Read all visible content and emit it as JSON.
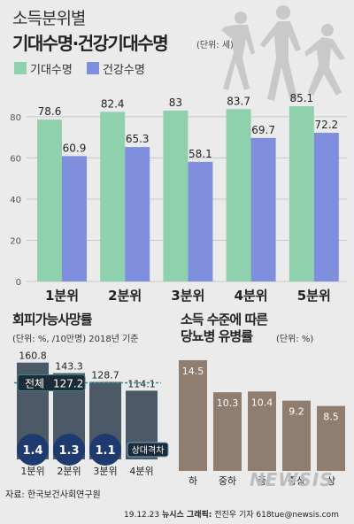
{
  "header": {
    "title_line1": "소득분위별",
    "title_line2": "기대수명·건강기대수명",
    "unit": "(단위: 세)"
  },
  "colors": {
    "green": "#8fd1ac",
    "blue": "#7f8fdd",
    "gray_bar": "#4c5966",
    "brown_bar": "#8f7d70",
    "navy_circle": "#1f3a6e",
    "accent_teal": "#2e8a8f"
  },
  "chart_data": [
    {
      "type": "bar",
      "title": "기대수명·건강기대수명",
      "categories": [
        "1분위",
        "2분위",
        "3분위",
        "4분위",
        "5분위"
      ],
      "series": [
        {
          "name": "기대수명",
          "values": [
            78.6,
            82.4,
            83,
            83.7,
            85.1
          ],
          "labels": [
            "78.6",
            "82.4",
            "83",
            "83.7",
            "85.1"
          ]
        },
        {
          "name": "건강수명",
          "values": [
            60.9,
            65.3,
            58.1,
            69.7,
            72.2
          ],
          "labels": [
            "60.9",
            "65.3",
            "58.1",
            "69.7",
            "72.2"
          ]
        }
      ],
      "yticks": [
        0,
        20,
        40,
        60,
        80
      ],
      "ylim": [
        0,
        95
      ],
      "grid": true,
      "legend": "top-left"
    },
    {
      "type": "bar",
      "title": "회피가능사망률",
      "subtitle": "(단위: %, /10만명) 2018년 기준",
      "categories": [
        "1분위",
        "2분위",
        "3분위",
        "4분위"
      ],
      "values": [
        160.8,
        143.3,
        128.7,
        114.1
      ],
      "value_labels": [
        "160.8",
        "143.3",
        "128.7",
        "114.1"
      ],
      "ratio_values": [
        "1.4",
        "1.3",
        "1.1"
      ],
      "ratio_label": "상대격차",
      "reference_line": {
        "label": "전체",
        "value": 127.2,
        "value_label": "127.2"
      },
      "ylim": [
        0,
        175
      ]
    },
    {
      "type": "bar",
      "title": "소득 수준에 따른 당뇨병 유병률",
      "unit": "(단위: %)",
      "categories": [
        "하",
        "중하",
        "중",
        "중상",
        "상"
      ],
      "values": [
        14.5,
        10.3,
        10.4,
        9.2,
        8.5
      ],
      "value_labels": [
        "14.5",
        "10.3",
        "10.4",
        "9.2",
        "8.5"
      ],
      "ylim": [
        0,
        16
      ]
    }
  ],
  "section2": {
    "title": "회피가능사망률",
    "subtitle": "(단위: %, /10만명) 2018년 기준"
  },
  "section3": {
    "title_line1": "소득 수준에 따른",
    "title_line2": "당뇨병 유병률",
    "unit": "(단위: %)"
  },
  "footer": {
    "source": "자료:  한국보건사회연구원",
    "credit_date": "19.12.23",
    "credit_org": "뉴시스 그래픽:",
    "credit_author": "전진우 기자 618tue@newsis.com",
    "watermark": "NEWSIS"
  }
}
